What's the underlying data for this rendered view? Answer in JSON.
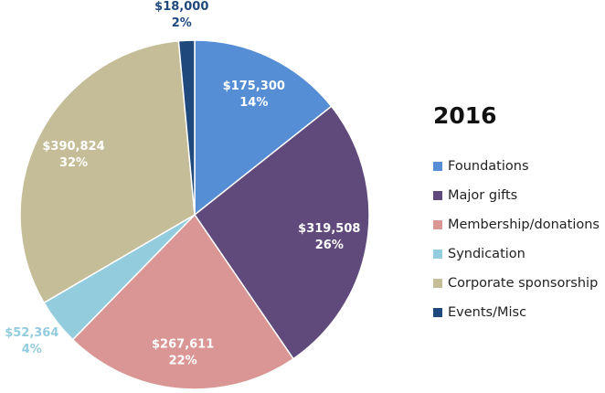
{
  "chart_data": {
    "type": "pie",
    "title": "2016",
    "start": "top",
    "direction": "clockwise",
    "legend_position": "right",
    "slices": [
      {
        "name": "Foundations",
        "value": 175300,
        "value_label": "$175,300",
        "percent_label": "14%",
        "color": "#558ed5",
        "label_color": "#ffffff"
      },
      {
        "name": "Major gifts",
        "value": 319508,
        "value_label": "$319,508",
        "percent_label": "26%",
        "color": "#604a7b",
        "label_color": "#ffffff"
      },
      {
        "name": "Membership/donations",
        "value": 267611,
        "value_label": "$267,611",
        "percent_label": "22%",
        "color": "#d99694",
        "label_color": "#ffffff"
      },
      {
        "name": "Syndication",
        "value": 52364,
        "value_label": "$52,364",
        "percent_label": "4%",
        "color": "#93cddd",
        "label_color": "#93cddd"
      },
      {
        "name": "Corporate sponsorship",
        "value": 390824,
        "value_label": "$390,824",
        "percent_label": "32%",
        "color": "#c4bd97",
        "label_color": "#ffffff"
      },
      {
        "name": "Events/Misc",
        "value": 18000,
        "value_label": "$18,000",
        "percent_label": "2%",
        "color": "#1f497d",
        "label_color": "#1f497d"
      }
    ]
  }
}
